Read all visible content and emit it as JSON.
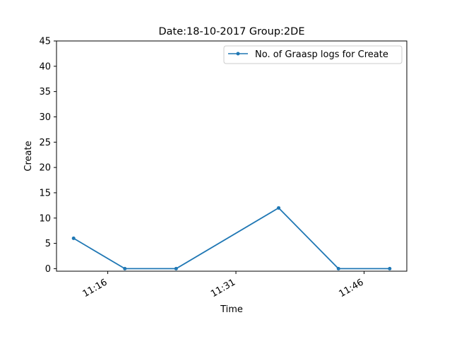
{
  "chart_data": {
    "type": "line",
    "title": "Date:18-10-2017  Group:2DE",
    "xlabel": "Time",
    "ylabel": "Create",
    "x": [
      "11:12",
      "11:18",
      "11:24",
      "11:36",
      "11:43",
      "11:49"
    ],
    "x_ticks": [
      "11:16",
      "11:31",
      "11:46"
    ],
    "xlim": [
      "11:10",
      "11:51"
    ],
    "ylim": [
      -0.5,
      45
    ],
    "y_ticks": [
      0,
      5,
      10,
      15,
      20,
      25,
      30,
      35,
      40,
      45
    ],
    "series": [
      {
        "name": "No. of Graasp logs for Create",
        "color": "#1f77b4",
        "marker": "dot",
        "values": [
          6,
          0,
          0,
          12,
          0,
          0
        ]
      }
    ],
    "grid": false,
    "legend_position": "top-right"
  }
}
